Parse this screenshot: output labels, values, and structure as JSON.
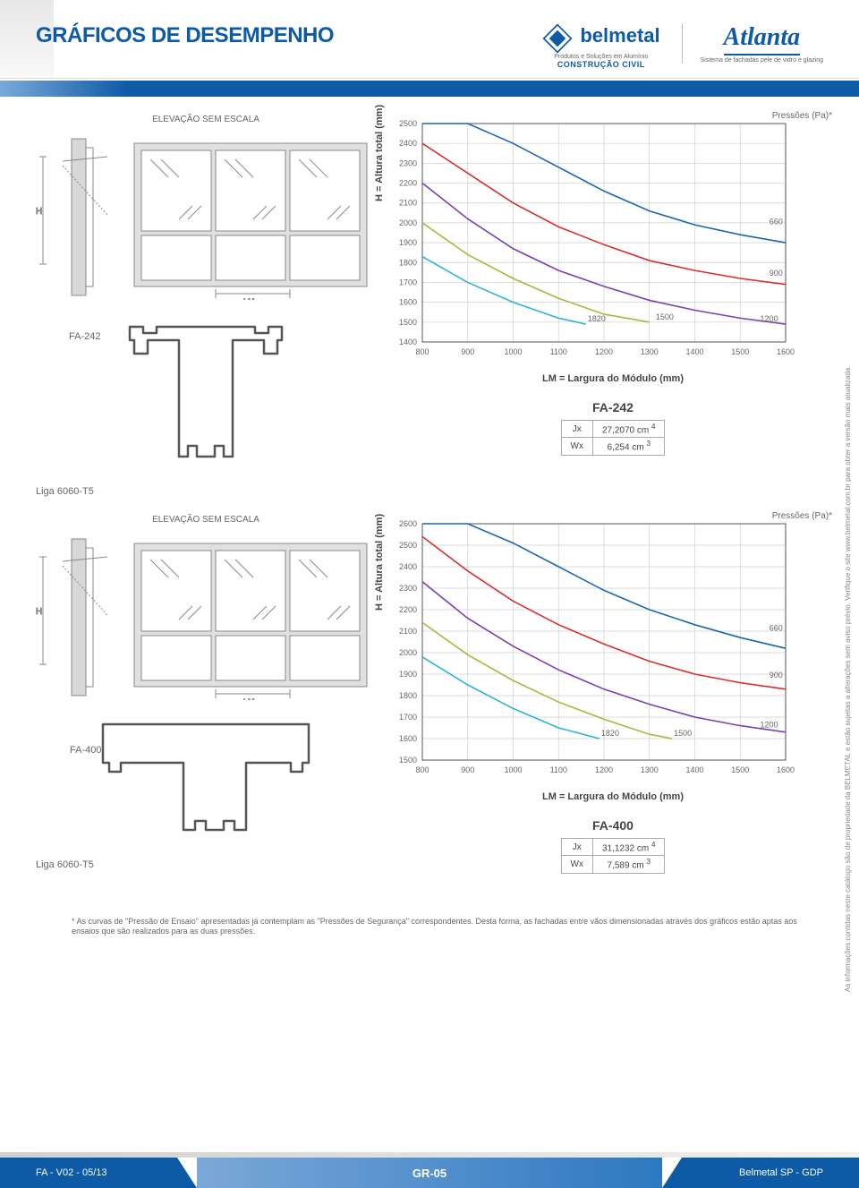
{
  "header": {
    "title": "GRÁFICOS DE DESEMPENHO",
    "belmetal": {
      "name": "belmetal",
      "tag1": "Produtos e Soluções em Alumínio",
      "tag2": "CONSTRUÇÃO CIVIL"
    },
    "atlanta": {
      "name": "Atlanta",
      "tag": "Sistema de fachadas pele de vidro e glazing"
    }
  },
  "sections": [
    {
      "elev_label": "ELEVAÇÃO SEM ESCALA",
      "profile_label": "FA-242",
      "liga": "Liga 6060-T5",
      "chart": {
        "pressoes_label": "Pressões (Pa)*",
        "y_title": "H = Altura total (mm)",
        "x_title": "LM = Largura do Módulo (mm)",
        "y_ticks": [
          1400,
          1500,
          1600,
          1700,
          1800,
          1900,
          2000,
          2100,
          2200,
          2300,
          2400,
          2500
        ],
        "x_ticks": [
          800,
          900,
          1000,
          1100,
          1200,
          1300,
          1400,
          1500,
          1600
        ],
        "series": [
          {
            "label": "660",
            "label_x": 1560,
            "label_y": 1980,
            "color": "#1b66b3",
            "points": [
              [
                800,
                2580
              ],
              [
                900,
                2520
              ],
              [
                1000,
                2400
              ],
              [
                1100,
                2280
              ],
              [
                1200,
                2160
              ],
              [
                1300,
                2060
              ],
              [
                1400,
                1990
              ],
              [
                1500,
                1940
              ],
              [
                1600,
                1900
              ]
            ]
          },
          {
            "label": "900",
            "label_x": 1560,
            "label_y": 1720,
            "color": "#d62f2f",
            "points": [
              [
                800,
                2400
              ],
              [
                900,
                2250
              ],
              [
                1000,
                2100
              ],
              [
                1100,
                1980
              ],
              [
                1200,
                1890
              ],
              [
                1300,
                1810
              ],
              [
                1400,
                1760
              ],
              [
                1500,
                1720
              ],
              [
                1600,
                1690
              ]
            ]
          },
          {
            "label": "1200",
            "label_x": 1540,
            "label_y": 1490,
            "color": "#7a3fb3",
            "points": [
              [
                800,
                2200
              ],
              [
                900,
                2020
              ],
              [
                1000,
                1870
              ],
              [
                1100,
                1760
              ],
              [
                1200,
                1680
              ],
              [
                1300,
                1610
              ],
              [
                1400,
                1560
              ],
              [
                1500,
                1520
              ],
              [
                1600,
                1490
              ]
            ]
          },
          {
            "label": "1500",
            "label_x": 1310,
            "label_y": 1500,
            "color": "#9cbf3a",
            "points": [
              [
                800,
                2000
              ],
              [
                900,
                1840
              ],
              [
                1000,
                1720
              ],
              [
                1100,
                1620
              ],
              [
                1200,
                1540
              ],
              [
                1300,
                1500
              ]
            ]
          },
          {
            "label": "1820",
            "label_x": 1160,
            "label_y": 1490,
            "color": "#2fb3d6",
            "points": [
              [
                800,
                1830
              ],
              [
                900,
                1700
              ],
              [
                1000,
                1600
              ],
              [
                1100,
                1520
              ],
              [
                1160,
                1490
              ]
            ]
          }
        ]
      },
      "spec": {
        "title": "FA-242",
        "rows": [
          [
            "Jx",
            "27,2070 cm",
            "4"
          ],
          [
            "Wx",
            "6,254  cm",
            "3"
          ]
        ]
      }
    },
    {
      "elev_label": "ELEVAÇÃO SEM ESCALA",
      "profile_label": "FA-400",
      "liga": "Liga 6060-T5",
      "chart": {
        "pressoes_label": "Pressões (Pa)*",
        "y_title": "H = Altura total (mm)",
        "x_title": "LM = Largura do Módulo (mm)",
        "y_ticks": [
          1500,
          1600,
          1700,
          1800,
          1900,
          2000,
          2100,
          2200,
          2300,
          2400,
          2500,
          2600
        ],
        "x_ticks": [
          800,
          900,
          1000,
          1100,
          1200,
          1300,
          1400,
          1500,
          1600
        ],
        "series": [
          {
            "label": "660",
            "label_x": 1560,
            "label_y": 2090,
            "color": "#1b66b3",
            "points": [
              [
                800,
                2700
              ],
              [
                900,
                2620
              ],
              [
                1000,
                2510
              ],
              [
                1100,
                2400
              ],
              [
                1200,
                2290
              ],
              [
                1300,
                2200
              ],
              [
                1400,
                2130
              ],
              [
                1500,
                2070
              ],
              [
                1600,
                2020
              ]
            ]
          },
          {
            "label": "900",
            "label_x": 1560,
            "label_y": 1870,
            "color": "#d62f2f",
            "points": [
              [
                800,
                2540
              ],
              [
                900,
                2380
              ],
              [
                1000,
                2240
              ],
              [
                1100,
                2130
              ],
              [
                1200,
                2040
              ],
              [
                1300,
                1960
              ],
              [
                1400,
                1900
              ],
              [
                1500,
                1860
              ],
              [
                1600,
                1830
              ]
            ]
          },
          {
            "label": "1200",
            "label_x": 1540,
            "label_y": 1640,
            "color": "#7a3fb3",
            "points": [
              [
                800,
                2330
              ],
              [
                900,
                2160
              ],
              [
                1000,
                2030
              ],
              [
                1100,
                1920
              ],
              [
                1200,
                1830
              ],
              [
                1300,
                1760
              ],
              [
                1400,
                1700
              ],
              [
                1500,
                1660
              ],
              [
                1600,
                1630
              ]
            ]
          },
          {
            "label": "1500",
            "label_x": 1350,
            "label_y": 1600,
            "color": "#9cbf3a",
            "points": [
              [
                800,
                2140
              ],
              [
                900,
                1990
              ],
              [
                1000,
                1870
              ],
              [
                1100,
                1770
              ],
              [
                1200,
                1690
              ],
              [
                1300,
                1620
              ],
              [
                1350,
                1600
              ]
            ]
          },
          {
            "label": "1820",
            "label_x": 1190,
            "label_y": 1600,
            "color": "#2fb3d6",
            "points": [
              [
                800,
                1980
              ],
              [
                900,
                1850
              ],
              [
                1000,
                1740
              ],
              [
                1100,
                1650
              ],
              [
                1190,
                1600
              ]
            ]
          }
        ]
      },
      "spec": {
        "title": "FA-400",
        "rows": [
          [
            "Jx",
            "31,1232 cm",
            "4"
          ],
          [
            "Wx",
            "7,589  cm",
            "3"
          ]
        ]
      }
    }
  ],
  "footnote": "* As curvas de \"Pressão de Ensaio\" apresentadas já contemplam as \"Pressões de Segurança\" correspondentes. Desta forma, as fachadas entre vãos dimensionadas através dos gráficos estão aptas aos ensaios que são realizados para as duas pressões.",
  "sidenote": "As informações contidas neste catálogo são de propriedade da BELMETAL e estão sujeitas a alterações sem aviso prévio. Verifique o site www.belmetal.com.br para obter a versão mais atualizada.",
  "footer": {
    "left": "FA - V02 - 05/13",
    "mid": "GR-05",
    "right": "Belmetal SP -  GDP"
  },
  "lm_label": "LM",
  "h_label": "H",
  "colors": {
    "grid": "#cfcfcf",
    "axis": "#555",
    "draw": "#888"
  }
}
